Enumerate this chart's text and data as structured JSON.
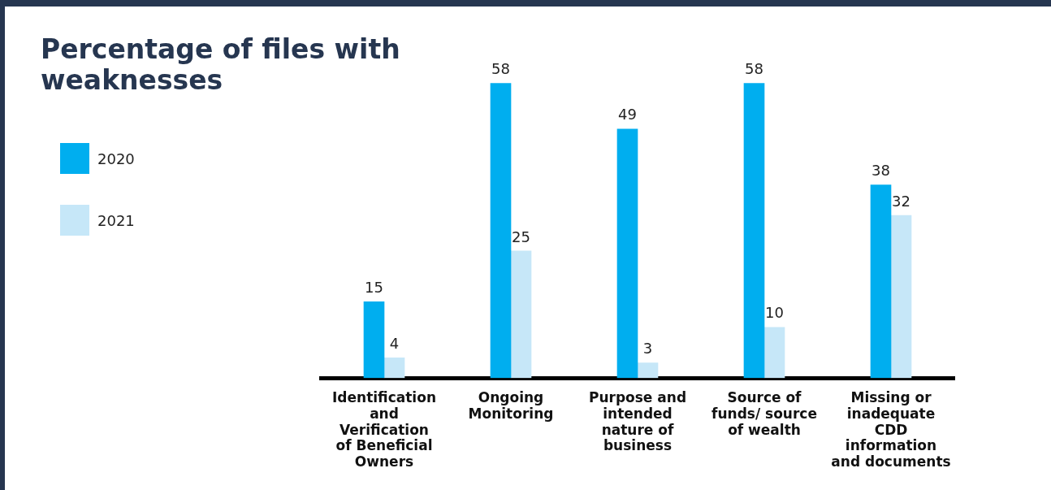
{
  "chart_data": {
    "type": "bar",
    "title": "Percentage of files with weaknesses",
    "categories": [
      "Identification and Verification of Beneficial Owners",
      "Ongoing Monitoring",
      "Purpose and intended nature of business",
      "Source of funds/ source of wealth",
      "Missing or inadequate CDD information and documents"
    ],
    "series": [
      {
        "name": "2020",
        "color": "#00aeef",
        "values": [
          15,
          58,
          49,
          58,
          38
        ]
      },
      {
        "name": "2021",
        "color": "#c6e7f8",
        "values": [
          4,
          25,
          3,
          10,
          32
        ]
      }
    ],
    "data_labels": true,
    "grid": false,
    "legend": "left"
  }
}
